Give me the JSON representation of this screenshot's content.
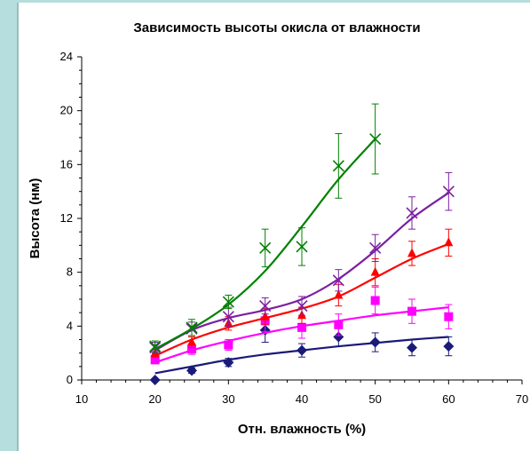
{
  "chart_data": {
    "type": "scatter",
    "title": "Зависимость высоты окисла от влажности",
    "xlabel": "Отн. влажность (%)",
    "ylabel": "Высота (нм)",
    "xlim": [
      10,
      70
    ],
    "ylim": [
      0,
      24
    ],
    "xticks": [
      "10",
      "20",
      "30",
      "40",
      "50",
      "60",
      "70"
    ],
    "yticks": [
      "0",
      "4",
      "8",
      "12",
      "16",
      "20",
      "24"
    ],
    "grid": false,
    "legend": "none",
    "series": [
      {
        "color": "#1a1a7a",
        "marker": "diamond",
        "x": [
          20,
          25,
          30,
          35,
          40,
          45,
          50,
          55,
          60
        ],
        "y": [
          0,
          0.7,
          1.3,
          3.7,
          2.2,
          3.2,
          2.8,
          2.4,
          2.5
        ],
        "err": [
          0,
          0.2,
          0.3,
          0.9,
          0.5,
          0.7,
          0.7,
          0.6,
          0.7
        ],
        "fit_x": [
          20,
          25,
          30,
          35,
          40,
          45,
          50,
          55,
          60
        ],
        "fit_y": [
          0.5,
          1.0,
          1.5,
          1.9,
          2.2,
          2.5,
          2.75,
          3.0,
          3.2
        ]
      },
      {
        "color": "#ff00ff",
        "marker": "square",
        "x": [
          20,
          25,
          30,
          35,
          40,
          45,
          50,
          55,
          60
        ],
        "y": [
          1.5,
          2.3,
          2.6,
          4.4,
          3.9,
          4.1,
          5.9,
          5.1,
          4.7
        ],
        "err": [
          0.3,
          0.4,
          0.4,
          0.8,
          0.8,
          0.8,
          1.0,
          0.9,
          0.9
        ],
        "fit_x": [
          20,
          25,
          30,
          35,
          40,
          45,
          50,
          55,
          60
        ],
        "fit_y": [
          1.3,
          2.2,
          2.9,
          3.5,
          4.0,
          4.4,
          4.8,
          5.1,
          5.4
        ]
      },
      {
        "color": "#ff0000",
        "marker": "triangle",
        "x": [
          20,
          25,
          30,
          35,
          40,
          45,
          50,
          55,
          60
        ],
        "y": [
          2.0,
          2.8,
          4.2,
          4.7,
          4.8,
          6.3,
          8.0,
          9.4,
          10.2
        ],
        "err": [
          0.3,
          0.4,
          0.5,
          0.6,
          0.6,
          0.8,
          1.0,
          0.9,
          1.0
        ],
        "fit_x": [
          20,
          25,
          30,
          35,
          40,
          45,
          50,
          55,
          60
        ],
        "fit_y": [
          1.8,
          3.0,
          3.9,
          4.6,
          5.3,
          6.2,
          7.6,
          9.0,
          10.1
        ]
      },
      {
        "color": "#7b1fa2",
        "marker": "x",
        "x": [
          20,
          25,
          30,
          35,
          40,
          45,
          50,
          55,
          60
        ],
        "y": [
          2.4,
          3.8,
          4.7,
          5.5,
          5.5,
          7.4,
          9.8,
          12.4,
          14.0
        ],
        "err": [
          0.4,
          0.5,
          0.7,
          0.6,
          0.7,
          0.8,
          1.0,
          1.2,
          1.4
        ],
        "fit_x": [
          20,
          25,
          30,
          35,
          40,
          45,
          50,
          55,
          60
        ],
        "fit_y": [
          2.2,
          3.7,
          4.6,
          5.2,
          6.0,
          7.5,
          9.6,
          12.0,
          13.9
        ]
      },
      {
        "color": "#008000",
        "marker": "x",
        "x": [
          20,
          25,
          30,
          35,
          40,
          45,
          50
        ],
        "y": [
          2.5,
          3.9,
          5.8,
          9.8,
          9.9,
          15.9,
          17.9
        ],
        "err": [
          0.4,
          0.6,
          0.5,
          1.4,
          1.4,
          2.4,
          2.6
        ],
        "fit_x": [
          20,
          25,
          30,
          35,
          40,
          45,
          50
        ],
        "fit_y": [
          2.3,
          3.8,
          5.6,
          8.1,
          11.4,
          14.9,
          17.9
        ]
      }
    ]
  }
}
